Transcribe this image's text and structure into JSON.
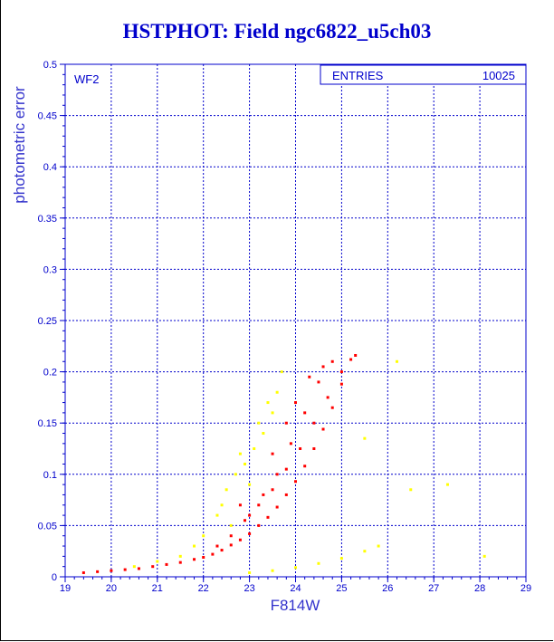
{
  "title": "HSTPHOT: Field ngc6822_u5ch03",
  "chart_data": {
    "type": "scatter",
    "title": "HSTPHOT: Field ngc6822_u5ch03",
    "panel_label": "WF2",
    "xlabel": "F814W",
    "ylabel": "photometric error",
    "xlim": [
      19,
      29
    ],
    "ylim": [
      0,
      0.5
    ],
    "x_ticks": [
      "19",
      "20",
      "21",
      "22",
      "23",
      "24",
      "25",
      "26",
      "27",
      "28",
      "29"
    ],
    "y_ticks": [
      "0",
      "0.05",
      "0.1",
      "0.15",
      "0.2",
      "0.25",
      "0.3",
      "0.35",
      "0.4",
      "0.45",
      "0.5"
    ],
    "grid": true,
    "stats_box": {
      "label": "ENTRIES",
      "value": "10025"
    },
    "series": [
      {
        "color": "#ff0000",
        "points": [
          [
            19.4,
            0.004
          ],
          [
            19.7,
            0.005
          ],
          [
            20.0,
            0.006
          ],
          [
            20.3,
            0.007
          ],
          [
            20.6,
            0.008
          ],
          [
            20.9,
            0.01
          ],
          [
            21.2,
            0.012
          ],
          [
            21.5,
            0.014
          ],
          [
            21.8,
            0.017
          ],
          [
            22.0,
            0.019
          ],
          [
            22.2,
            0.022
          ],
          [
            22.4,
            0.026
          ],
          [
            22.6,
            0.031
          ],
          [
            22.8,
            0.036
          ],
          [
            23.0,
            0.042
          ],
          [
            23.2,
            0.05
          ],
          [
            23.4,
            0.058
          ],
          [
            23.6,
            0.068
          ],
          [
            23.8,
            0.08
          ],
          [
            24.0,
            0.093
          ],
          [
            24.2,
            0.108
          ],
          [
            24.4,
            0.125
          ],
          [
            24.6,
            0.144
          ],
          [
            24.8,
            0.165
          ],
          [
            25.0,
            0.188
          ],
          [
            25.2,
            0.212
          ],
          [
            25.3,
            0.216
          ],
          [
            22.3,
            0.03
          ],
          [
            22.6,
            0.04
          ],
          [
            22.9,
            0.055
          ],
          [
            23.2,
            0.07
          ],
          [
            23.5,
            0.085
          ],
          [
            23.8,
            0.105
          ],
          [
            24.1,
            0.125
          ],
          [
            24.4,
            0.15
          ],
          [
            24.7,
            0.175
          ],
          [
            25.0,
            0.2
          ],
          [
            23.0,
            0.06
          ],
          [
            23.3,
            0.08
          ],
          [
            23.6,
            0.1
          ],
          [
            23.9,
            0.13
          ],
          [
            24.2,
            0.16
          ],
          [
            24.5,
            0.19
          ],
          [
            24.8,
            0.21
          ],
          [
            23.8,
            0.15
          ],
          [
            24.0,
            0.17
          ],
          [
            24.3,
            0.195
          ],
          [
            24.6,
            0.205
          ],
          [
            23.5,
            0.12
          ],
          [
            22.8,
            0.07
          ]
        ]
      },
      {
        "color": "#ffff00",
        "points": [
          [
            21.5,
            0.02
          ],
          [
            22.0,
            0.04
          ],
          [
            22.3,
            0.06
          ],
          [
            22.5,
            0.085
          ],
          [
            22.7,
            0.1
          ],
          [
            22.9,
            0.11
          ],
          [
            23.1,
            0.125
          ],
          [
            23.3,
            0.14
          ],
          [
            23.5,
            0.16
          ],
          [
            23.6,
            0.18
          ],
          [
            23.7,
            0.2
          ],
          [
            23.4,
            0.17
          ],
          [
            23.0,
            0.09
          ],
          [
            22.6,
            0.05
          ],
          [
            22.4,
            0.07
          ],
          [
            22.8,
            0.12
          ],
          [
            23.2,
            0.15
          ],
          [
            21.8,
            0.03
          ],
          [
            20.5,
            0.01
          ],
          [
            21.0,
            0.015
          ],
          [
            23.0,
            0.004
          ],
          [
            23.5,
            0.006
          ],
          [
            24.0,
            0.009
          ],
          [
            24.5,
            0.013
          ],
          [
            25.0,
            0.018
          ],
          [
            25.5,
            0.025
          ],
          [
            25.8,
            0.03
          ],
          [
            26.5,
            0.085
          ],
          [
            27.3,
            0.09
          ],
          [
            28.1,
            0.02
          ],
          [
            25.5,
            0.135
          ],
          [
            26.2,
            0.21
          ]
        ]
      }
    ]
  }
}
